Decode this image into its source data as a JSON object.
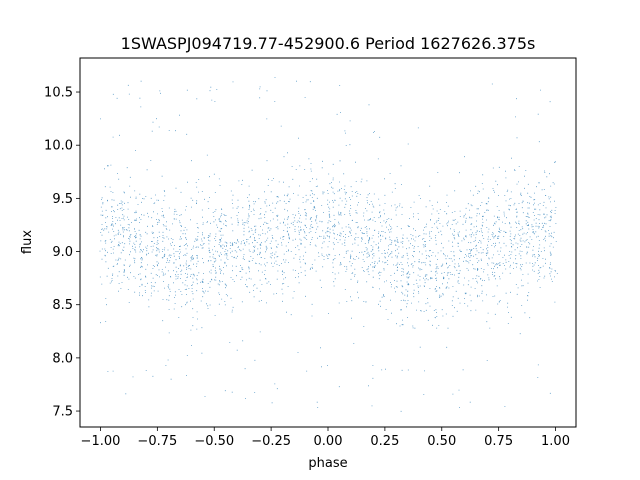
{
  "chart_data": {
    "type": "scatter",
    "title": "1SWASPJ094719.77-452900.6 Period 1627626.375s",
    "xlabel": "phase",
    "ylabel": "flux",
    "xlim": [
      -1.09,
      1.09
    ],
    "ylim": [
      7.35,
      10.82
    ],
    "x_ticks": [
      -1.0,
      -0.75,
      -0.5,
      -0.25,
      0.0,
      0.25,
      0.5,
      0.75,
      1.0
    ],
    "x_tick_labels": [
      "−1.00",
      "−0.75",
      "−0.50",
      "−0.25",
      "0.00",
      "0.25",
      "0.50",
      "0.75",
      "1.00"
    ],
    "y_ticks": [
      7.5,
      8.0,
      8.5,
      9.0,
      9.5,
      10.0,
      10.5
    ],
    "y_tick_labels": [
      "7.5",
      "8.0",
      "8.5",
      "9.0",
      "9.5",
      "10.0",
      "10.5"
    ],
    "grid": false,
    "legend": "none",
    "marker_color": "#1f77b4",
    "series": [
      {
        "phase_range": [
          -1.0,
          1.0
        ],
        "point_count": 14000,
        "mean_flux_at_phase": [
          {
            "x": -1.0,
            "y": 9.2
          },
          {
            "x": -0.75,
            "y": 9.05
          },
          {
            "x": -0.6,
            "y": 8.9
          },
          {
            "x": -0.5,
            "y": 9.0
          },
          {
            "x": -0.25,
            "y": 9.15
          },
          {
            "x": 0.0,
            "y": 9.25
          },
          {
            "x": 0.25,
            "y": 9.05
          },
          {
            "x": 0.4,
            "y": 8.9
          },
          {
            "x": 0.5,
            "y": 9.0
          },
          {
            "x": 0.75,
            "y": 9.1
          },
          {
            "x": 1.0,
            "y": 9.2
          }
        ],
        "core_spread": 0.28,
        "flux_range": [
          7.5,
          10.65
        ]
      }
    ]
  }
}
